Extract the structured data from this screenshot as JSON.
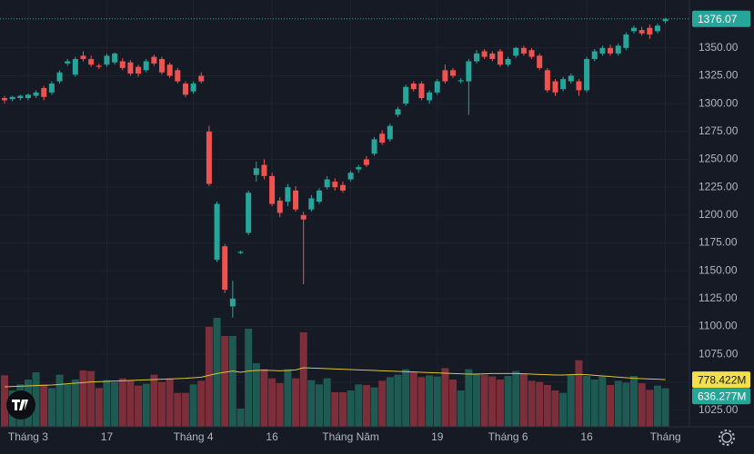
{
  "chart_data": {
    "type": "candlestick",
    "categories": [
      null,
      null,
      null,
      "Tháng 3",
      null,
      null,
      null,
      null,
      null,
      null,
      null,
      null,
      null,
      "17",
      null,
      null,
      null,
      null,
      null,
      null,
      null,
      null,
      null,
      null,
      "Tháng 4",
      null,
      null,
      null,
      null,
      null,
      null,
      null,
      null,
      null,
      "16",
      null,
      null,
      null,
      null,
      null,
      null,
      null,
      null,
      null,
      "Tháng Năm",
      null,
      null,
      null,
      null,
      null,
      null,
      null,
      null,
      null,
      null,
      "19",
      null,
      null,
      null,
      null,
      null,
      null,
      null,
      null,
      "Tháng 6",
      null,
      null,
      null,
      null,
      null,
      null,
      null,
      null,
      null,
      "16",
      null,
      null,
      null,
      null,
      null,
      null,
      null,
      null,
      null,
      "Tháng"
    ],
    "open": [
      1305,
      1304,
      1305,
      1305,
      1307,
      1314,
      1310,
      1320,
      1336,
      1326,
      1343,
      1340,
      1334,
      1335,
      1337,
      1338,
      1337,
      1333,
      1330,
      1342,
      1340,
      1335,
      1330,
      1318,
      1311,
      1325,
      1275,
      1160,
      1172,
      1118,
      1166,
      1184,
      1236,
      1245,
      1235,
      1213,
      1212,
      1222,
      1200,
      1205,
      1212,
      1225,
      1230,
      1227,
      1232,
      1241,
      1250,
      1255,
      1273,
      1268,
      1290,
      1300,
      1318,
      1318,
      1303,
      1310,
      1330,
      1330,
      1320,
      1320,
      1338,
      1347,
      1345,
      1347,
      1335,
      1343,
      1350,
      1348,
      1343,
      1330,
      1320,
      1313,
      1320,
      1320,
      1312,
      1340,
      1345,
      1350,
      1345,
      1350,
      1365,
      1366,
      1368,
      1365,
      1374
    ],
    "high": [
      1307,
      1307,
      1308,
      1309,
      1312,
      1316,
      1320,
      1330,
      1340,
      1342,
      1347,
      1343,
      1336,
      1345,
      1346,
      1341,
      1339,
      1335,
      1340,
      1344,
      1342,
      1337,
      1332,
      1320,
      1320,
      1328,
      1280,
      1212,
      1174,
      1141,
      1168,
      1222,
      1248,
      1250,
      1238,
      1216,
      1228,
      1226,
      1203,
      1218,
      1224,
      1235,
      1233,
      1230,
      1240,
      1245,
      1253,
      1270,
      1276,
      1282,
      1297,
      1317,
      1320,
      1320,
      1312,
      1322,
      1335,
      1332,
      1323,
      1340,
      1348,
      1349,
      1347,
      1349,
      1342,
      1351,
      1352,
      1350,
      1345,
      1332,
      1322,
      1324,
      1327,
      1322,
      1342,
      1349,
      1352,
      1353,
      1354,
      1364,
      1370,
      1369,
      1371,
      1372,
      1377
    ],
    "low": [
      1300,
      1302,
      1303,
      1303,
      1305,
      1303,
      1308,
      1318,
      1334,
      1324,
      1338,
      1333,
      1331,
      1333,
      1335,
      1330,
      1325,
      1324,
      1328,
      1334,
      1326,
      1323,
      1318,
      1306,
      1309,
      1318,
      1226,
      1158,
      1130,
      1108,
      1165,
      1182,
      1230,
      1232,
      1208,
      1198,
      1208,
      1203,
      1138,
      1203,
      1210,
      1223,
      1222,
      1220,
      1230,
      1238,
      1243,
      1253,
      1263,
      1266,
      1288,
      1298,
      1311,
      1303,
      1300,
      1308,
      1318,
      1323,
      1318,
      1290,
      1336,
      1340,
      1338,
      1333,
      1333,
      1341,
      1343,
      1340,
      1330,
      1310,
      1307,
      1311,
      1318,
      1307,
      1310,
      1338,
      1343,
      1343,
      1343,
      1348,
      1363,
      1361,
      1358,
      1363,
      1372
    ],
    "close": [
      1303,
      1306,
      1307,
      1308,
      1310,
      1306,
      1318,
      1328,
      1338,
      1340,
      1340,
      1335,
      1333,
      1343,
      1345,
      1332,
      1327,
      1327,
      1338,
      1336,
      1328,
      1325,
      1320,
      1308,
      1318,
      1320,
      1228,
      1210,
      1133,
      1125,
      1167,
      1220,
      1242,
      1235,
      1210,
      1202,
      1225,
      1205,
      1196,
      1215,
      1222,
      1232,
      1225,
      1222,
      1238,
      1243,
      1245,
      1268,
      1265,
      1280,
      1295,
      1315,
      1313,
      1305,
      1310,
      1320,
      1320,
      1325,
      1321,
      1338,
      1345,
      1342,
      1340,
      1335,
      1340,
      1350,
      1345,
      1342,
      1332,
      1312,
      1310,
      1322,
      1325,
      1312,
      1340,
      1347,
      1350,
      1345,
      1352,
      1362,
      1368,
      1363,
      1362,
      1370,
      1376.07
    ],
    "volume": [
      850,
      600,
      700,
      780,
      900,
      700,
      640,
      860,
      700,
      780,
      930,
      920,
      640,
      770,
      740,
      800,
      760,
      680,
      710,
      860,
      740,
      800,
      560,
      560,
      700,
      760,
      1650,
      1800,
      1500,
      1500,
      300,
      1620,
      1050,
      950,
      800,
      720,
      950,
      800,
      1560,
      770,
      700,
      800,
      570,
      570,
      600,
      700,
      690,
      650,
      760,
      820,
      860,
      950,
      900,
      820,
      850,
      830,
      970,
      780,
      600,
      950,
      880,
      860,
      830,
      780,
      840,
      920,
      870,
      760,
      740,
      690,
      600,
      560,
      860,
      1100,
      840,
      780,
      830,
      690,
      760,
      730,
      840,
      720,
      610,
      680,
      636.277
    ],
    "volume_ma": [
      660,
      665,
      670,
      675,
      680,
      685,
      690,
      700,
      710,
      720,
      730,
      740,
      745,
      750,
      755,
      760,
      765,
      770,
      775,
      780,
      785,
      790,
      795,
      800,
      810,
      820,
      850,
      880,
      900,
      920,
      900,
      920,
      930,
      935,
      930,
      925,
      930,
      940,
      975,
      970,
      965,
      960,
      955,
      950,
      945,
      940,
      935,
      930,
      925,
      920,
      915,
      910,
      905,
      900,
      895,
      890,
      885,
      880,
      875,
      870,
      870,
      875,
      880,
      880,
      880,
      880,
      875,
      870,
      865,
      860,
      855,
      855,
      860,
      865,
      860,
      850,
      840,
      830,
      820,
      810,
      800,
      795,
      790,
      785,
      778.422
    ],
    "up_color": "#26a69a",
    "down_color": "#ef5350",
    "volume_up_color": "#1e5a52",
    "volume_down_color": "#7c2f3a",
    "volume_ma_color": "#d8c43a",
    "ylim": [
      1010,
      1393
    ],
    "volume_ylim": [
      0,
      7050
    ],
    "yticks": [
      {
        "value": 1025,
        "label": "1025.00"
      },
      {
        "value": 1050,
        "label": "1050.00"
      },
      {
        "value": 1075,
        "label": "1075.00"
      },
      {
        "value": 1100,
        "label": "1100.00"
      },
      {
        "value": 1125,
        "label": "1125.00"
      },
      {
        "value": 1150,
        "label": "1150.00"
      },
      {
        "value": 1175,
        "label": "1175.00"
      },
      {
        "value": 1200,
        "label": "1200.00"
      },
      {
        "value": 1225,
        "label": "1225.00"
      },
      {
        "value": 1250,
        "label": "1250.00"
      },
      {
        "value": 1275,
        "label": "1275.00"
      },
      {
        "value": 1300,
        "label": "1300.00"
      },
      {
        "value": 1325,
        "label": "1325.00"
      },
      {
        "value": 1350,
        "label": "1350.00"
      }
    ],
    "last_price": 1376.07,
    "volume_ma_label": {
      "value": 778.422,
      "label": "778.422M"
    },
    "volume_last_label": {
      "value": 636.277,
      "label": "636.277M"
    },
    "grid": true
  }
}
